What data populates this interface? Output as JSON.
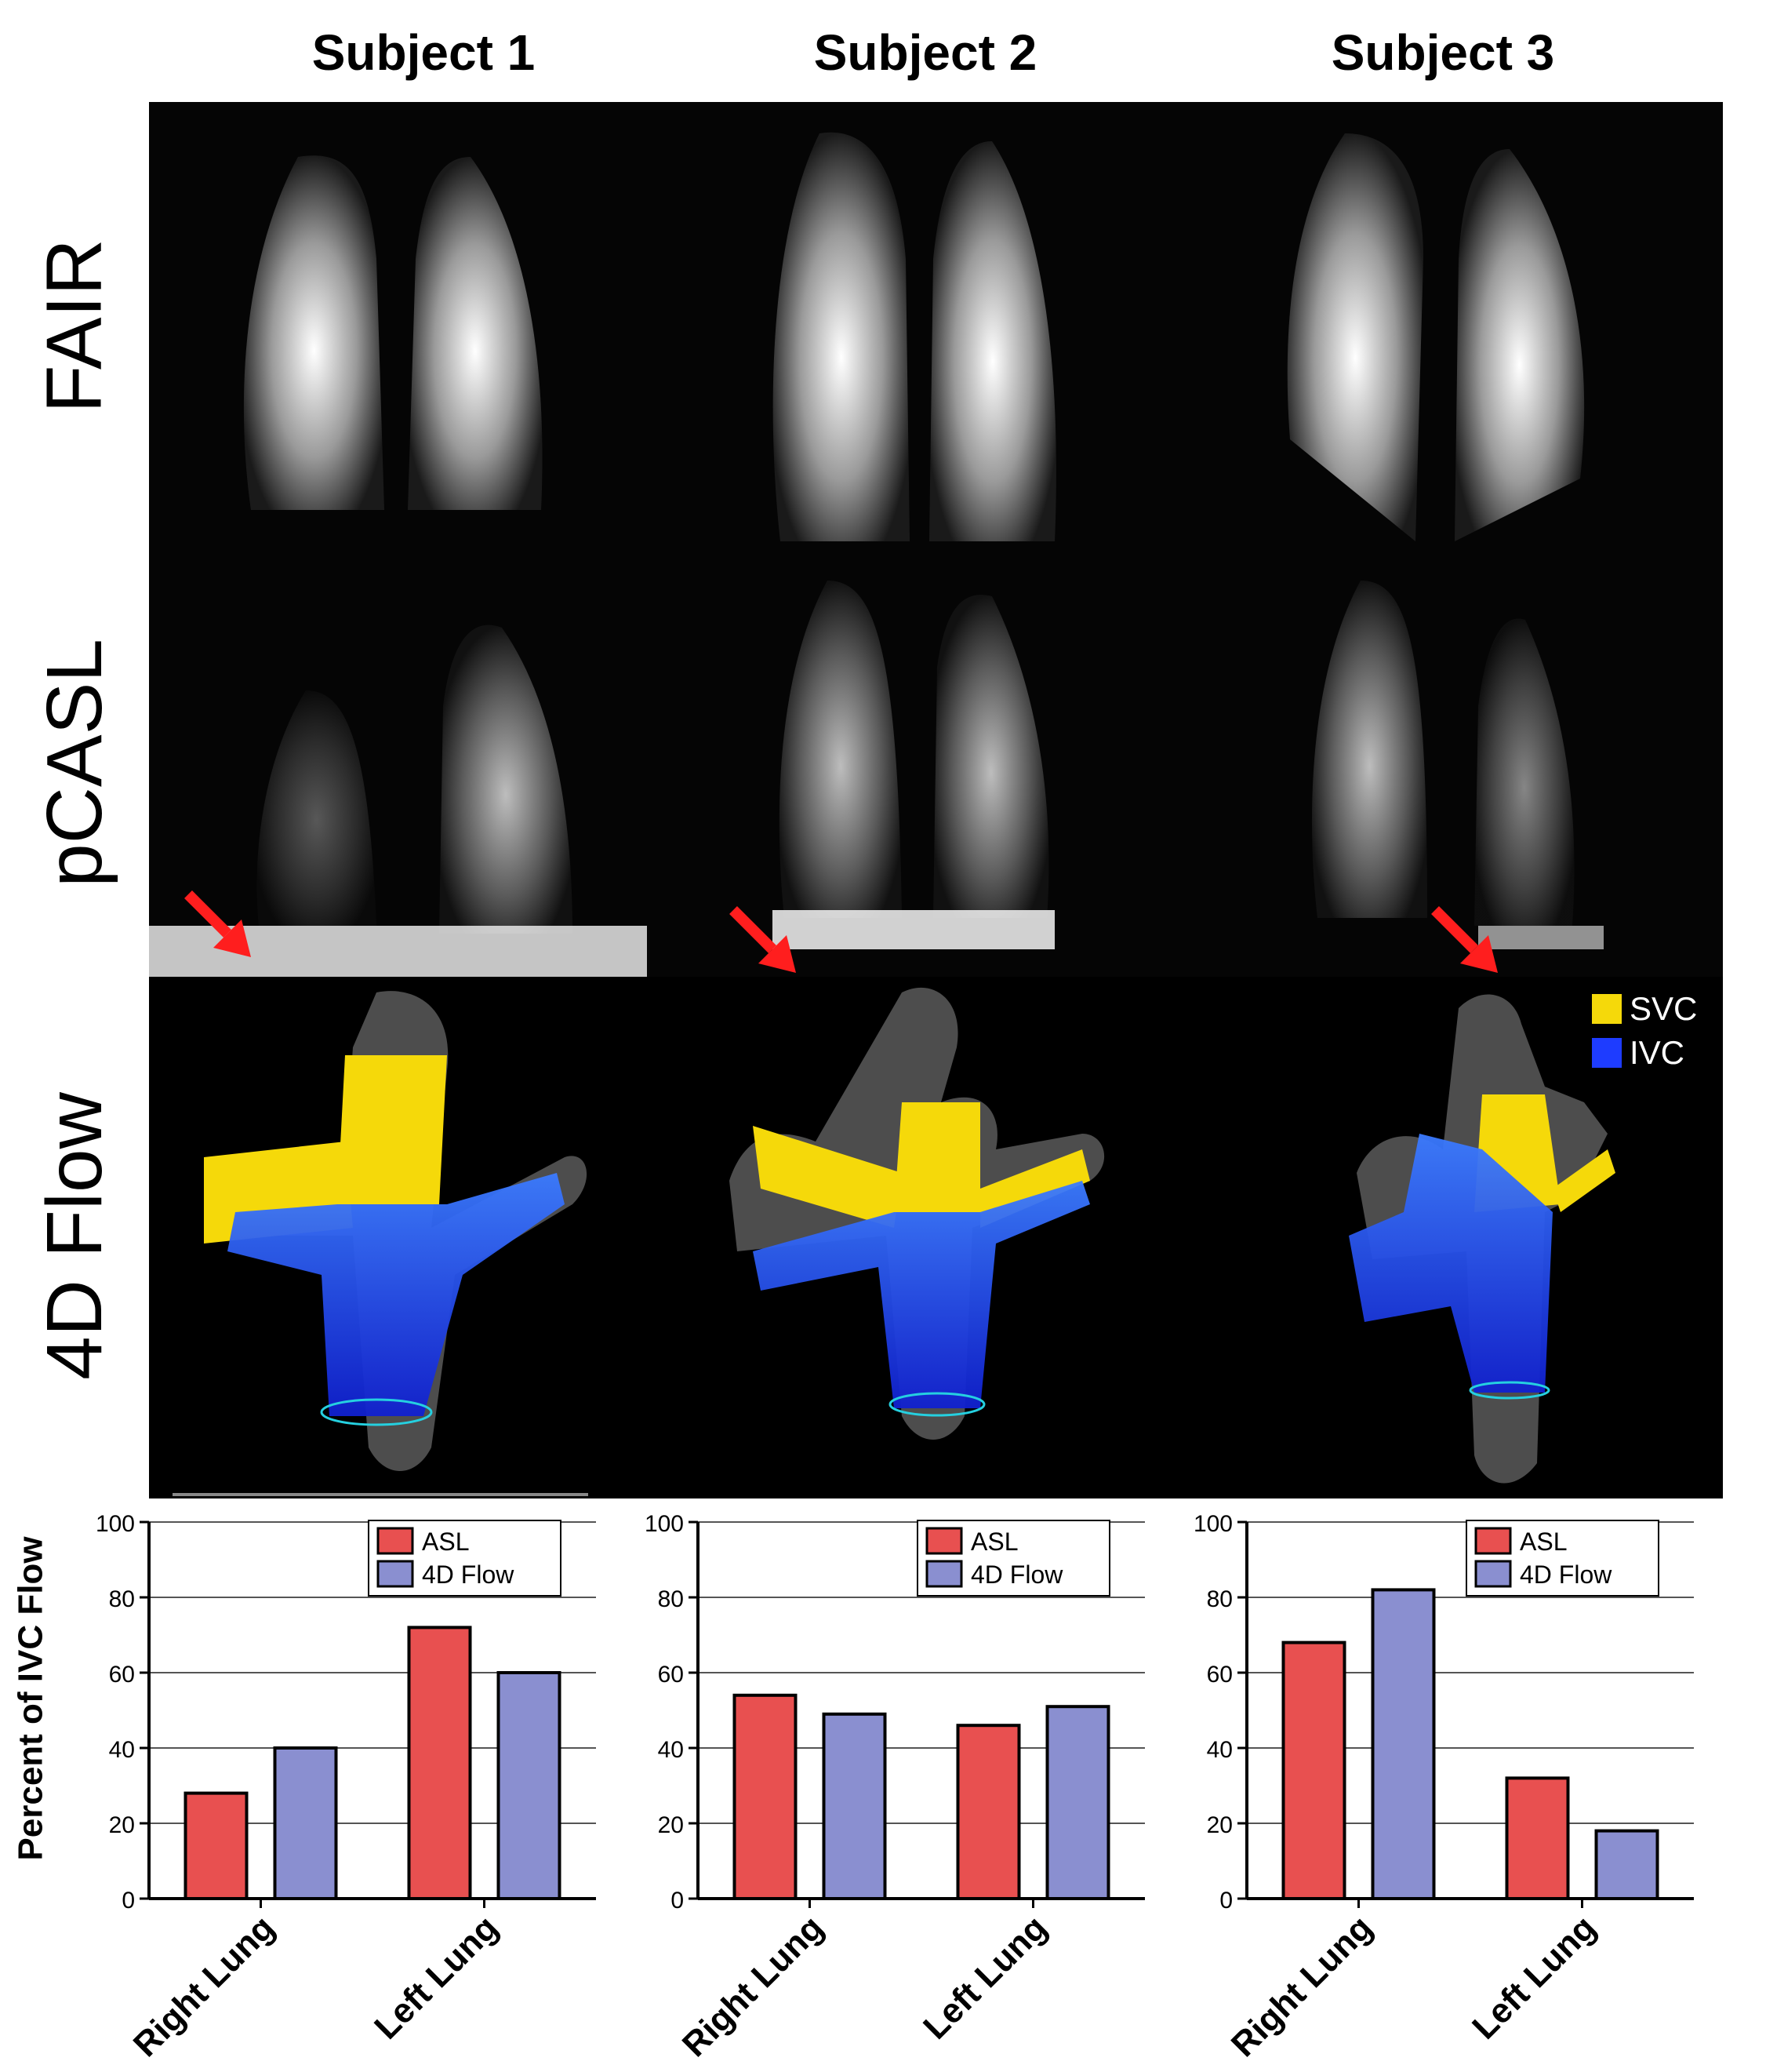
{
  "columns": [
    "Subject 1",
    "Subject 2",
    "Subject 3"
  ],
  "rows": [
    "FAIR",
    "pCASL",
    "4D Flow"
  ],
  "flow_legend": [
    {
      "label": "SVC",
      "color": "#f5d90a"
    },
    {
      "label": "IVC",
      "color": "#1e3cff"
    }
  ],
  "colors": {
    "asl": "#e85050",
    "flow4d": "#8a8fd0"
  },
  "ylabel": "Percent of IVC Flow",
  "chart_data": [
    {
      "type": "bar",
      "categories": [
        "Right Lung",
        "Left Lung"
      ],
      "series": [
        {
          "name": "ASL",
          "values": [
            28,
            72
          ]
        },
        {
          "name": "4D Flow",
          "values": [
            40,
            60
          ]
        }
      ],
      "ylim": [
        0,
        100
      ],
      "yticks": [
        "0",
        "20",
        "40",
        "60",
        "80",
        "100"
      ],
      "ylabel": "Percent of IVC Flow",
      "grid": true,
      "legend": "top-right"
    },
    {
      "type": "bar",
      "categories": [
        "Right Lung",
        "Left Lung"
      ],
      "series": [
        {
          "name": "ASL",
          "values": [
            54,
            46
          ]
        },
        {
          "name": "4D Flow",
          "values": [
            49,
            51
          ]
        }
      ],
      "ylim": [
        0,
        100
      ],
      "yticks": [
        "0",
        "20",
        "40",
        "60",
        "80",
        "100"
      ],
      "ylabel": "",
      "grid": true,
      "legend": "top-right"
    },
    {
      "type": "bar",
      "categories": [
        "Right Lung",
        "Left Lung"
      ],
      "series": [
        {
          "name": "ASL",
          "values": [
            68,
            32
          ]
        },
        {
          "name": "4D Flow",
          "values": [
            82,
            18
          ]
        }
      ],
      "ylim": [
        0,
        100
      ],
      "yticks": [
        "0",
        "20",
        "40",
        "60",
        "80",
        "100"
      ],
      "ylabel": "",
      "grid": true,
      "legend": "top-right"
    }
  ]
}
